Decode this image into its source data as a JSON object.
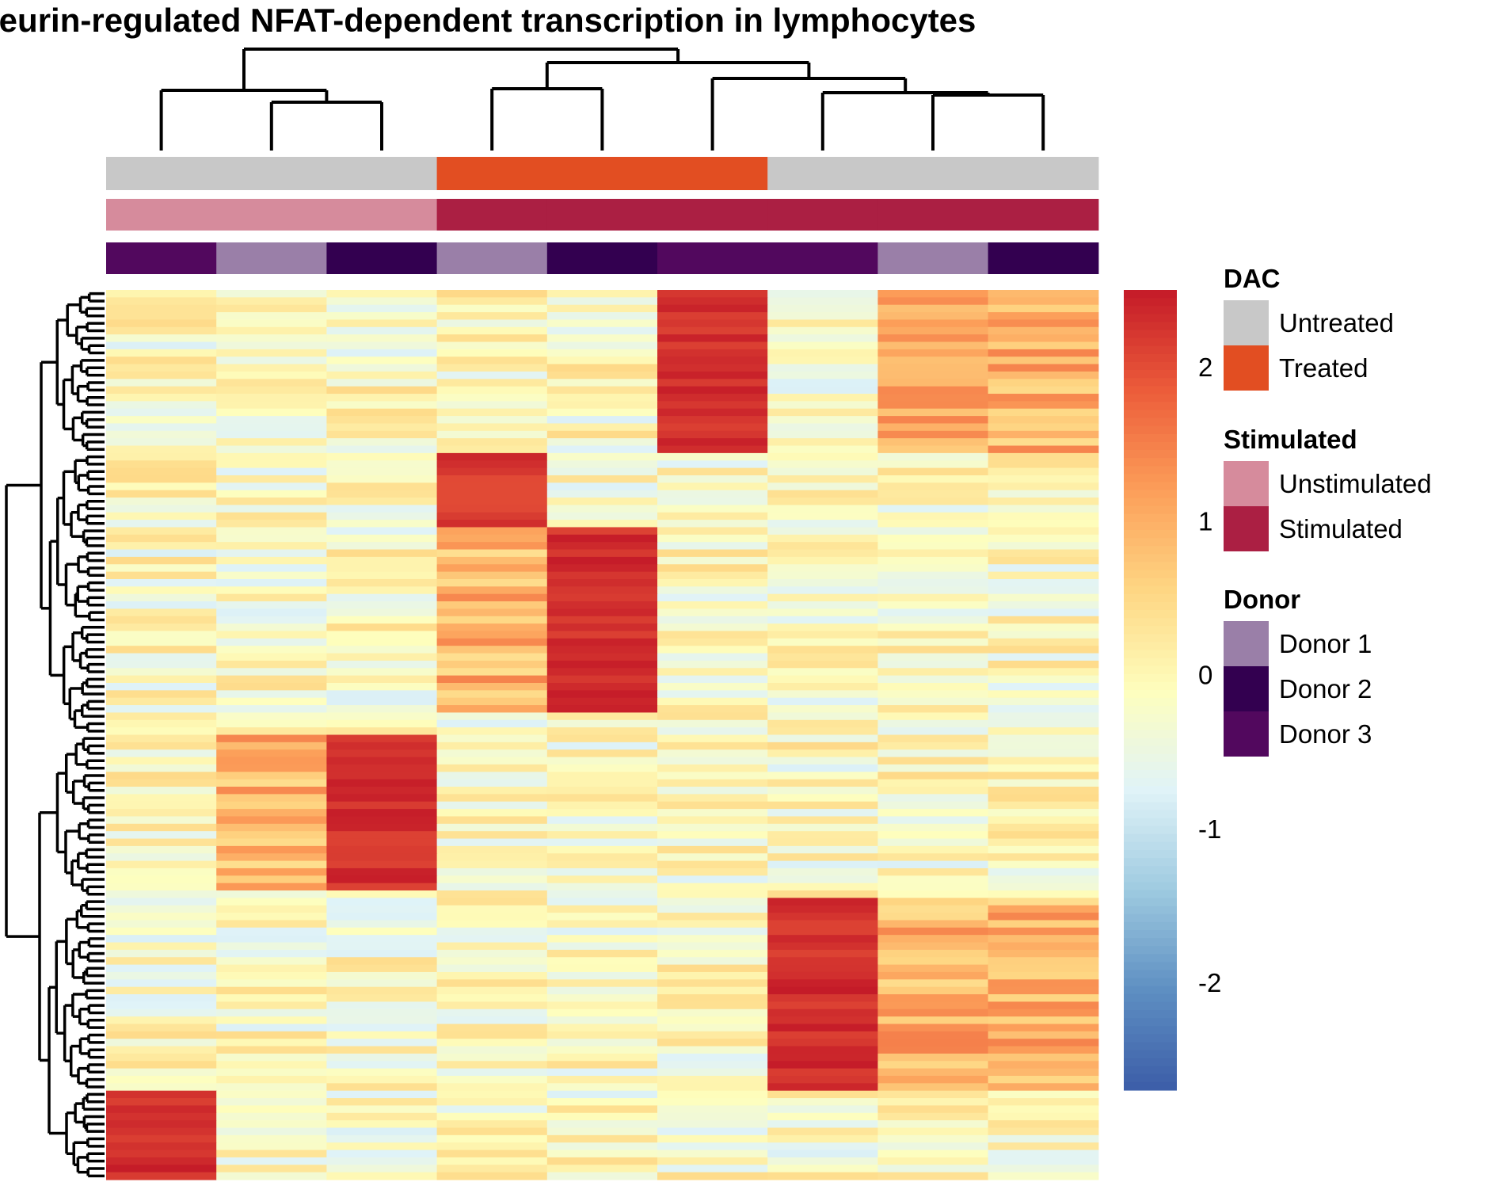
{
  "chart_data": {
    "type": "heatmap",
    "title": "cineurin-regulated NFAT-dependent transcription in lymphocytes",
    "n_columns": 9,
    "n_rows": 120,
    "color_scale": {
      "min": -2.7,
      "max": 2.5,
      "ticks": [
        -2,
        -1,
        0,
        1,
        2
      ],
      "tick_labels": [
        "-2",
        "-1",
        "0",
        "1",
        "2"
      ],
      "palette": [
        "#3c5da8",
        "#5e8fc2",
        "#9ecae0",
        "#e0f3f8",
        "#fefebd",
        "#fed683",
        "#fc9e59",
        "#ec5c3a",
        "#c41a28"
      ]
    },
    "column_annotations": {
      "DAC": [
        "Untreated",
        "Untreated",
        "Untreated",
        "Treated",
        "Treated",
        "Treated",
        "Untreated",
        "Untreated",
        "Untreated"
      ],
      "Stimulated": [
        "Unstimulated",
        "Unstimulated",
        "Unstimulated",
        "Stimulated",
        "Stimulated",
        "Stimulated",
        "Stimulated",
        "Stimulated",
        "Stimulated"
      ],
      "Donor": [
        "Donor 3",
        "Donor 1",
        "Donor 2",
        "Donor 1",
        "Donor 2",
        "Donor 3",
        "Donor 3",
        "Donor 1",
        "Donor 2"
      ]
    },
    "legend": [
      {
        "title": "DAC",
        "items": [
          {
            "label": "Untreated",
            "color": "#c8c8c8"
          },
          {
            "label": "Treated",
            "color": "#e24e22"
          }
        ]
      },
      {
        "title": "Stimulated",
        "items": [
          {
            "label": "Unstimulated",
            "color": "#d68b9c"
          },
          {
            "label": "Stimulated",
            "color": "#ab1f43"
          }
        ]
      },
      {
        "title": "Donor",
        "items": [
          {
            "label": "Donor 1",
            "color": "#9a7fa8"
          },
          {
            "label": "Donor 2",
            "color": "#330050"
          },
          {
            "label": "Donor 3",
            "color": "#52085e"
          }
        ]
      }
    ],
    "row_blocks": [
      {
        "rows": [
          0,
          21
        ],
        "high_columns": [
          5,
          7,
          8
        ],
        "peak_column": 5,
        "peak_value": 2.4
      },
      {
        "rows": [
          22,
          32
        ],
        "high_columns": [
          3
        ],
        "peak_column": 3,
        "peak_value": 2.3
      },
      {
        "rows": [
          32,
          56
        ],
        "high_columns": [
          3,
          4
        ],
        "peak_column": 4,
        "peak_value": 2.4
      },
      {
        "rows": [
          60,
          80
        ],
        "high_columns": [
          1,
          2
        ],
        "peak_column": 2,
        "peak_value": 2.4
      },
      {
        "rows": [
          82,
          107
        ],
        "high_columns": [
          6,
          7,
          8
        ],
        "peak_column": 6,
        "peak_value": 2.4
      },
      {
        "rows": [
          108,
          119
        ],
        "high_columns": [
          0
        ],
        "peak_column": 0,
        "peak_value": 2.4
      }
    ],
    "column_dendrogram_leaf_order": [
      0,
      1,
      2,
      3,
      4,
      5,
      6,
      7,
      8
    ],
    "legend_position": "right",
    "grid": false
  }
}
